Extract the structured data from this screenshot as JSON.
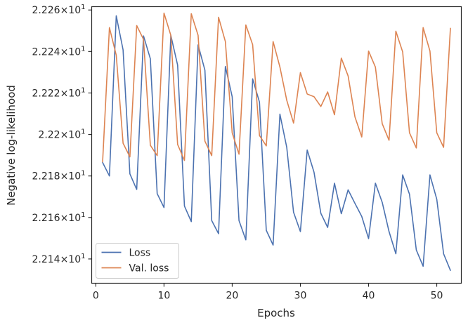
{
  "chart_data": {
    "type": "line",
    "xlabel": "Epochs",
    "ylabel": "Negative log-likelihood",
    "xlim": [
      -0.6,
      53.6
    ],
    "ylim": [
      22.1283,
      22.2616
    ],
    "x_ticks": [
      0,
      10,
      20,
      30,
      40,
      50
    ],
    "y_ticks": [
      22.14,
      22.16,
      22.18,
      22.2,
      22.22,
      22.24,
      22.26
    ],
    "y_tick_labels": [
      {
        "mantissa": "2.214",
        "exp": "1"
      },
      {
        "mantissa": "2.216",
        "exp": "1"
      },
      {
        "mantissa": "2.218",
        "exp": "1"
      },
      {
        "mantissa": "2.22",
        "exp": "1"
      },
      {
        "mantissa": "2.222",
        "exp": "1"
      },
      {
        "mantissa": "2.224",
        "exp": "1"
      },
      {
        "mantissa": "2.226",
        "exp": "1"
      }
    ],
    "y_tick_base": "10",
    "y_tick_times": "×",
    "legend_position": "lower-left",
    "grid": false,
    "x": [
      1,
      2,
      3,
      4,
      5,
      6,
      7,
      8,
      9,
      10,
      11,
      12,
      13,
      14,
      15,
      16,
      17,
      18,
      19,
      20,
      21,
      22,
      23,
      24,
      25,
      26,
      27,
      28,
      29,
      30,
      31,
      32,
      33,
      34,
      35,
      36,
      37,
      38,
      39,
      40,
      41,
      42,
      43,
      44,
      45,
      46,
      47,
      48,
      49,
      50,
      51,
      52
    ],
    "series": [
      {
        "name": "Loss",
        "color": "#4c72b0",
        "values": [
          22.1865,
          22.18,
          22.2572,
          22.2408,
          22.181,
          22.1735,
          22.2475,
          22.2365,
          22.1715,
          22.1648,
          22.2478,
          22.2334,
          22.1655,
          22.158,
          22.2432,
          22.231,
          22.1585,
          22.1522,
          22.2328,
          22.2182,
          22.1585,
          22.1492,
          22.2268,
          22.2156,
          22.1538,
          22.1467,
          22.2098,
          22.1938,
          22.1625,
          22.1532,
          22.1925,
          22.1818,
          22.162,
          22.1552,
          22.1765,
          22.1618,
          22.1733,
          22.1668,
          22.1605,
          22.1498,
          22.1765,
          22.1673,
          22.1532,
          22.1425,
          22.1805,
          22.1712,
          22.1443,
          22.1365,
          22.1805,
          22.1688,
          22.1425,
          22.1345
        ]
      },
      {
        "name": "Val. loss",
        "color": "#dd8452",
        "values": [
          22.1868,
          22.2515,
          22.2382,
          22.1958,
          22.1892,
          22.2525,
          22.2458,
          22.1948,
          22.1898,
          22.2585,
          22.2478,
          22.1952,
          22.1875,
          22.2582,
          22.2478,
          22.1968,
          22.1898,
          22.2565,
          22.2448,
          22.2008,
          22.1905,
          22.2528,
          22.2433,
          22.1995,
          22.1945,
          22.2448,
          22.2325,
          22.2165,
          22.2055,
          22.2298,
          22.2195,
          22.2182,
          22.2135,
          22.2205,
          22.2095,
          22.2368,
          22.2282,
          22.2085,
          22.1988,
          22.2402,
          22.2325,
          22.2052,
          22.1972,
          22.2498,
          22.2398,
          22.2008,
          22.1935,
          22.2515,
          22.2402,
          22.2008,
          22.1938,
          22.2512
        ]
      }
    ]
  }
}
